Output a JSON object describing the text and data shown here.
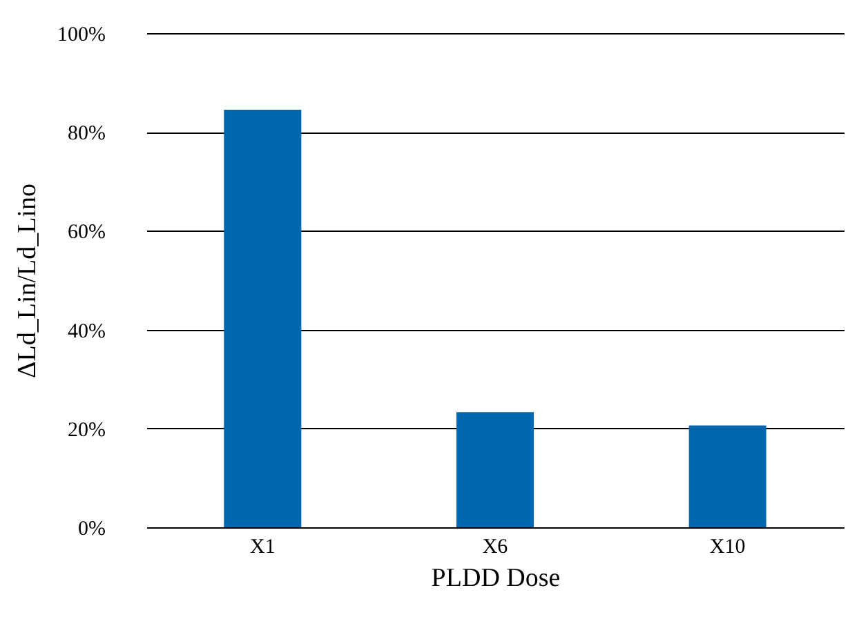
{
  "chart_data": {
    "type": "bar",
    "xlabel": "PLDD Dose",
    "ylabel": "ΔLd_Lin/Ld_Lino",
    "categories": [
      "X1",
      "X6",
      "X10"
    ],
    "values": [
      84.5,
      23.3,
      20.6
    ],
    "color": "#0066ad",
    "ylim": [
      0,
      100
    ],
    "yticks": [
      {
        "value": 0,
        "label": "0%"
      },
      {
        "value": 20,
        "label": "20%"
      },
      {
        "value": 40,
        "label": "40%"
      },
      {
        "value": 60,
        "label": "60%"
      },
      {
        "value": 80,
        "label": "80%"
      },
      {
        "value": 100,
        "label": "100%"
      }
    ],
    "grid": "y"
  }
}
